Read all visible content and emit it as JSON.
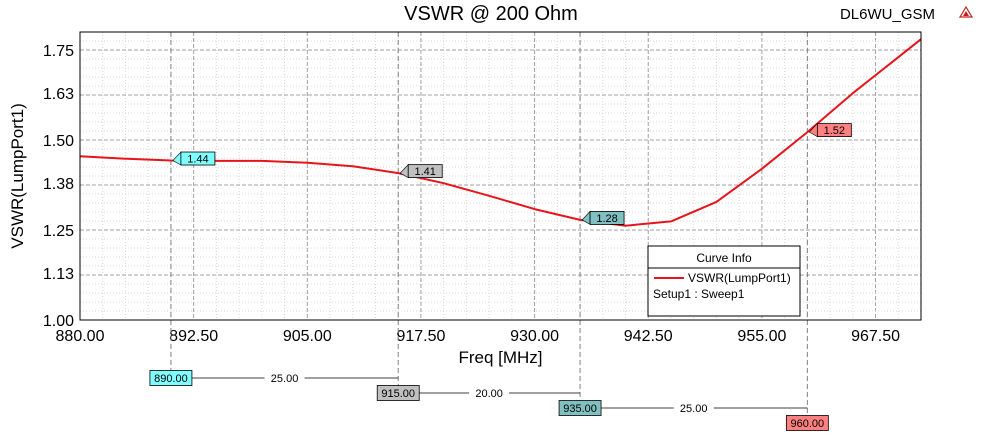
{
  "title": "VSWR @ 200 Ohm",
  "project": "DL6WU_GSM",
  "chart_data": {
    "type": "line",
    "xlabel": "Freq [MHz]",
    "ylabel": "VSWR(LumpPort1)",
    "xlim": [
      880.0,
      972.5
    ],
    "ylim": [
      1.0,
      1.8
    ],
    "x_ticks": [
      "880.00",
      "892.50",
      "905.00",
      "917.50",
      "930.00",
      "942.50",
      "955.00",
      "967.50"
    ],
    "y_ticks": [
      "1.00",
      "1.13",
      "1.25",
      "1.38",
      "1.50",
      "1.63",
      "1.75"
    ],
    "grid": true,
    "series": [
      {
        "name": "VSWR(LumpPort1)",
        "color": "#e8141b",
        "x": [
          880,
          885,
          890,
          895,
          900,
          905,
          910,
          915,
          920,
          925,
          930,
          935,
          940,
          945,
          950,
          955,
          960,
          965,
          972.5
        ],
        "y": [
          1.455,
          1.448,
          1.443,
          1.442,
          1.442,
          1.437,
          1.427,
          1.408,
          1.38,
          1.345,
          1.308,
          1.278,
          1.262,
          1.274,
          1.328,
          1.42,
          1.522,
          1.63,
          1.78
        ]
      }
    ],
    "markers": [
      {
        "x": 890,
        "y": 1.443,
        "label": "1.44",
        "x_label": "890.00",
        "color": "#80ffff"
      },
      {
        "x": 915,
        "y": 1.408,
        "label": "1.41",
        "x_label": "915.00",
        "color": "#c0c0c0"
      },
      {
        "x": 935,
        "y": 1.278,
        "label": "1.28",
        "x_label": "935.00",
        "color": "#80c0c0"
      },
      {
        "x": 960,
        "y": 1.522,
        "label": "1.52",
        "x_label": "960.00",
        "color": "#ff8080"
      }
    ],
    "deltas": [
      "25.00",
      "20.00",
      "25.00"
    ],
    "legend": {
      "title": "Curve Info",
      "entry": "VSWR(LumpPort1)",
      "setup": "Setup1 : Sweep1",
      "placement": "bottom-right"
    }
  }
}
